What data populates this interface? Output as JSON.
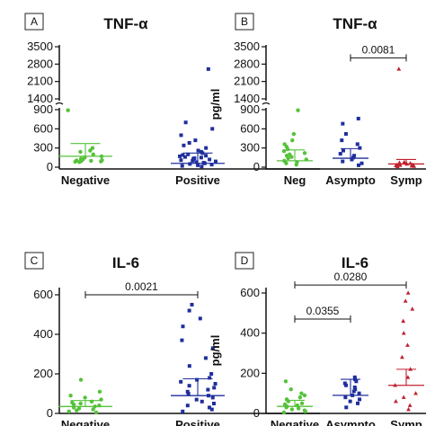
{
  "colors": {
    "negative": "#55c23a",
    "asympto": "#1f2f9c",
    "symp": "#c0202e",
    "axis": "#111111"
  },
  "chart_data": [
    {
      "panel": "A",
      "type": "scatter",
      "title": "TNF-α",
      "ylabel": "",
      "y_ticks_lower": [
        "0",
        "300",
        "600",
        "900"
      ],
      "y_ticks_upper": [
        "1400",
        "2100",
        "2800",
        "3500"
      ],
      "categories": [
        "Negative",
        "Positive"
      ],
      "series": [
        {
          "values": [
            80,
            85,
            90,
            95,
            100,
            105,
            110,
            120,
            130,
            150,
            170,
            200,
            240,
            260,
            300,
            940
          ],
          "mean": 170,
          "sd": 370
        },
        {
          "values": [
            10,
            20,
            30,
            40,
            50,
            60,
            70,
            80,
            90,
            100,
            110,
            120,
            130,
            140,
            150,
            160,
            170,
            180,
            190,
            200,
            220,
            240,
            260,
            300,
            340,
            380,
            420,
            500,
            600,
            700,
            2600
          ],
          "mean": 60,
          "sd": 220
        }
      ],
      "comparisons": []
    },
    {
      "panel": "B",
      "type": "scatter",
      "title": "TNF-α",
      "ylabel": "pg/ml",
      "y_ticks_lower": [
        "0",
        "300",
        "600",
        "900"
      ],
      "y_ticks_upper": [
        "1400",
        "2100",
        "2800",
        "3500"
      ],
      "categories": [
        "Neg",
        "Asympto",
        "Symp"
      ],
      "series": [
        {
          "values": [
            40,
            60,
            80,
            100,
            120,
            140,
            160,
            180,
            200,
            220,
            250,
            280,
            320,
            360,
            420,
            520,
            940
          ],
          "mean": 100,
          "sd": 270
        },
        {
          "values": [
            30,
            60,
            90,
            120,
            150,
            180,
            210,
            260,
            300,
            360,
            420,
            520,
            680,
            760
          ],
          "mean": 140,
          "sd": 290
        },
        {
          "values": [
            10,
            15,
            20,
            25,
            30,
            35,
            40,
            45,
            50,
            60,
            70,
            80,
            2600
          ],
          "mean": 50,
          "sd": 120
        }
      ],
      "comparisons": [
        {
          "from": 1,
          "to": 2,
          "p": "0.0081",
          "level": 3050
        }
      ]
    },
    {
      "panel": "C",
      "type": "scatter",
      "title": "IL-6",
      "ylabel": "",
      "y_ticks": [
        "0",
        "200",
        "400",
        "600"
      ],
      "categories": [
        "Negative",
        "Positive"
      ],
      "series": [
        {
          "values": [
            5,
            10,
            15,
            20,
            25,
            30,
            35,
            40,
            45,
            50,
            55,
            60,
            70,
            80,
            90,
            110,
            170
          ],
          "mean": 35,
          "sd": 65
        },
        {
          "values": [
            10,
            20,
            30,
            40,
            50,
            60,
            70,
            80,
            90,
            100,
            110,
            120,
            130,
            140,
            150,
            160,
            170,
            180,
            200,
            240,
            280,
            330,
            370,
            440,
            480,
            520,
            550
          ],
          "mean": 90,
          "sd": 175
        }
      ],
      "comparisons": [
        {
          "from": 0,
          "to": 1,
          "p": "0.0021",
          "level": 600
        }
      ]
    },
    {
      "panel": "D",
      "type": "scatter",
      "title": "IL-6",
      "ylabel": "pg/ml",
      "y_ticks": [
        "0",
        "200",
        "400",
        "600"
      ],
      "categories": [
        "Negative",
        "Asympto",
        "Symp"
      ],
      "series": [
        {
          "values": [
            5,
            10,
            15,
            20,
            25,
            30,
            35,
            40,
            45,
            50,
            60,
            70,
            80,
            90,
            100,
            120,
            160
          ],
          "mean": 35,
          "sd": 65
        },
        {
          "values": [
            30,
            50,
            60,
            70,
            80,
            90,
            100,
            110,
            120,
            130,
            140,
            150,
            160,
            170,
            180
          ],
          "mean": 90,
          "sd": 170
        },
        {
          "values": [
            20,
            40,
            60,
            80,
            100,
            140,
            180,
            220,
            280,
            340,
            400,
            460,
            520,
            560,
            600
          ],
          "mean": 140,
          "sd": 220
        }
      ],
      "comparisons": [
        {
          "from": 0,
          "to": 1,
          "p": "0.0355",
          "level": 470
        },
        {
          "from": 0,
          "to": 2,
          "p": "0.0280",
          "level": 640
        }
      ]
    }
  ]
}
